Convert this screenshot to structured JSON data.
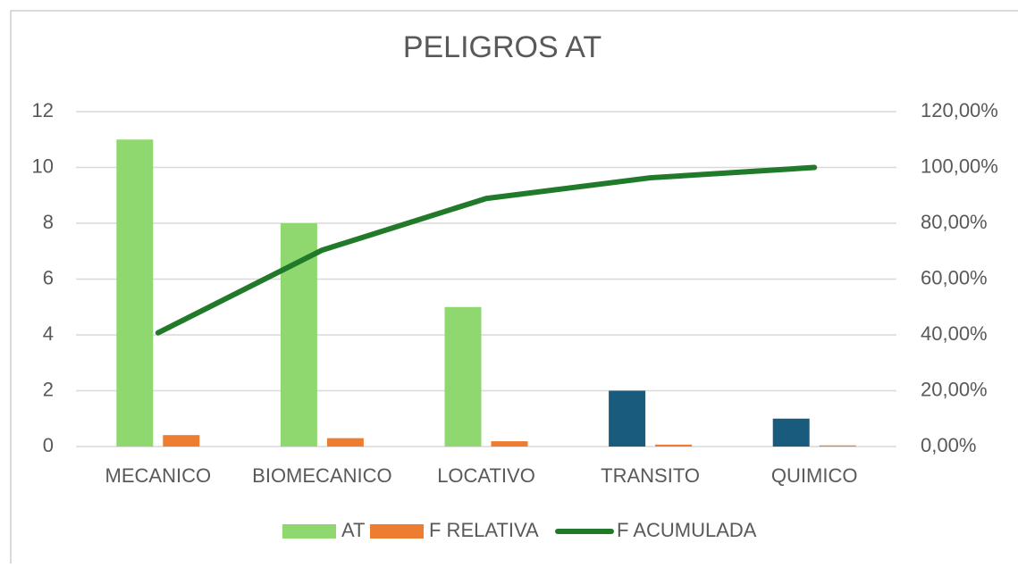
{
  "chart_data": {
    "type": "pareto",
    "title": "PELIGROS AT",
    "categories": [
      "MECANICO",
      "BIOMECANICO",
      "LOCATIVO",
      "TRANSITO",
      "QUIMICO"
    ],
    "series": [
      {
        "name": "AT",
        "type": "bar",
        "color": "#8fd86f",
        "colors": [
          "#8fd86f",
          "#8fd86f",
          "#8fd86f",
          "#195b7d",
          "#195b7d"
        ],
        "values": [
          11,
          8,
          5,
          2,
          1
        ]
      },
      {
        "name": "F RELATIVA",
        "type": "bar",
        "color": "#ed7d31",
        "values": [
          0.41,
          0.3,
          0.19,
          0.07,
          0.04
        ]
      },
      {
        "name": "F ACUMULADA",
        "type": "line",
        "axis": "y2",
        "color": "#217a2a",
        "values": [
          40.74,
          70.37,
          88.89,
          96.3,
          100
        ]
      }
    ],
    "ylim": [
      0,
      12
    ],
    "yticks": [
      0,
      2,
      4,
      6,
      8,
      10,
      12
    ],
    "y2lim": [
      0,
      120
    ],
    "y2ticks": [
      {
        "value": 0,
        "label": "0,00%"
      },
      {
        "value": 20,
        "label": "20,00%"
      },
      {
        "value": 40,
        "label": "40,00%"
      },
      {
        "value": 60,
        "label": "60,00%"
      },
      {
        "value": 80,
        "label": "80,00%"
      },
      {
        "value": 100,
        "label": "100,00%"
      },
      {
        "value": 120,
        "label": "120,00%"
      }
    ],
    "grid": true,
    "legend": "bottom"
  }
}
